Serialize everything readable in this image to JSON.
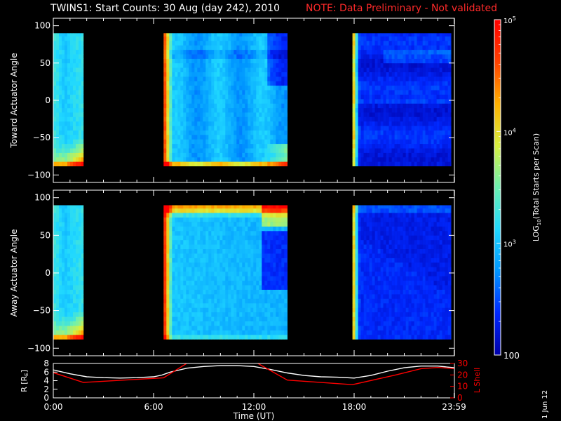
{
  "title": {
    "main": "TWINS1: Start Counts: 30 Aug (day 242), 2010",
    "note": "NOTE: Data Preliminary - Not validated",
    "note_color": "#ff2a2a"
  },
  "datestamp": "1 Jun 12",
  "colorbar": {
    "label": "LOG10(Total Starts per Scan)",
    "label_base": "LOG",
    "label_sub": "10",
    "label_rest": "(Total Starts per Scan)",
    "ticks": [
      {
        "base": "100",
        "exp": "",
        "value": 100
      },
      {
        "base": "10",
        "exp": "3",
        "value": 1000
      },
      {
        "base": "10",
        "exp": "4",
        "value": 10000
      },
      {
        "base": "10",
        "exp": "5",
        "value": 100000
      }
    ],
    "range": [
      100,
      100000
    ],
    "scale": "log",
    "colors": [
      "#0000aa",
      "#0028ff",
      "#0096ff",
      "#20d8ff",
      "#6cf0b0",
      "#d8f040",
      "#ffb000",
      "#ff4000",
      "#ff0000"
    ]
  },
  "chart_data": [
    {
      "type": "heatmap",
      "name": "toward",
      "ylabel": "Toward Actuator Angle",
      "ylim": [
        -110,
        110
      ],
      "yticks": [
        100,
        50,
        0,
        -50,
        -100
      ],
      "xlim": [
        0,
        24
      ],
      "data_y_range": [
        -88,
        90
      ],
      "segments": [
        {
          "start": 0.0,
          "end": 1.8,
          "style": "left"
        },
        {
          "start": 6.6,
          "end": 14.0,
          "style": "mid-toward"
        },
        {
          "start": 17.9,
          "end": 23.8,
          "style": "right"
        }
      ]
    },
    {
      "type": "heatmap",
      "name": "away",
      "ylabel": "Away Actuator Angle",
      "ylim": [
        -110,
        110
      ],
      "yticks": [
        100,
        50,
        0,
        -50,
        -100
      ],
      "xlim": [
        0,
        24
      ],
      "data_y_range": [
        -88,
        90
      ],
      "segments": [
        {
          "start": 0.0,
          "end": 1.8,
          "style": "left"
        },
        {
          "start": 6.6,
          "end": 14.0,
          "style": "mid-away"
        },
        {
          "start": 17.9,
          "end": 23.8,
          "style": "right-away"
        }
      ]
    },
    {
      "type": "line",
      "name": "orbit",
      "xlabel": "Time (UT)",
      "xticks": [
        "0:00",
        "6:00",
        "12:00",
        "18:00",
        "23:59"
      ],
      "xtick_values": [
        0,
        6,
        12,
        18,
        23.98
      ],
      "xlim": [
        0,
        24
      ],
      "left_axis": {
        "label": "R [RE]",
        "label_base": "R [R",
        "label_sub": "E",
        "label_end": "]",
        "ylim": [
          0,
          8
        ],
        "yticks": [
          0,
          2,
          4,
          6,
          8
        ]
      },
      "right_axis": {
        "label": "L Shell",
        "ylim": [
          0,
          30
        ],
        "yticks": [
          0,
          10,
          20,
          30
        ],
        "color": "#ff0000"
      },
      "series": [
        {
          "name": "R",
          "color": "#ffffff",
          "axis": "left",
          "x": [
            0,
            1,
            2,
            3,
            4,
            5,
            6,
            6.5,
            7,
            8,
            9,
            10,
            11,
            12,
            13,
            14,
            15,
            16,
            17,
            18,
            19,
            20,
            21,
            22,
            23,
            24
          ],
          "y": [
            6.5,
            5.6,
            4.9,
            4.7,
            4.6,
            4.7,
            4.9,
            5.3,
            6.0,
            6.9,
            7.3,
            7.5,
            7.5,
            7.3,
            6.6,
            5.8,
            5.2,
            4.9,
            4.8,
            4.6,
            5.2,
            6.2,
            7.0,
            7.4,
            7.4,
            7.0
          ]
        },
        {
          "name": "L Shell",
          "color": "#ff0000",
          "axis": "right",
          "x": [
            0,
            1.8,
            6.6,
            8.2,
            8.3,
            11.9,
            12.0,
            14.0,
            17.9,
            20.5,
            22.0,
            23.0,
            24.0
          ],
          "y": [
            22,
            13.5,
            17.5,
            32,
            32,
            32,
            32,
            15.5,
            11.5,
            20,
            25.5,
            26.5,
            25.5
          ]
        }
      ]
    }
  ]
}
